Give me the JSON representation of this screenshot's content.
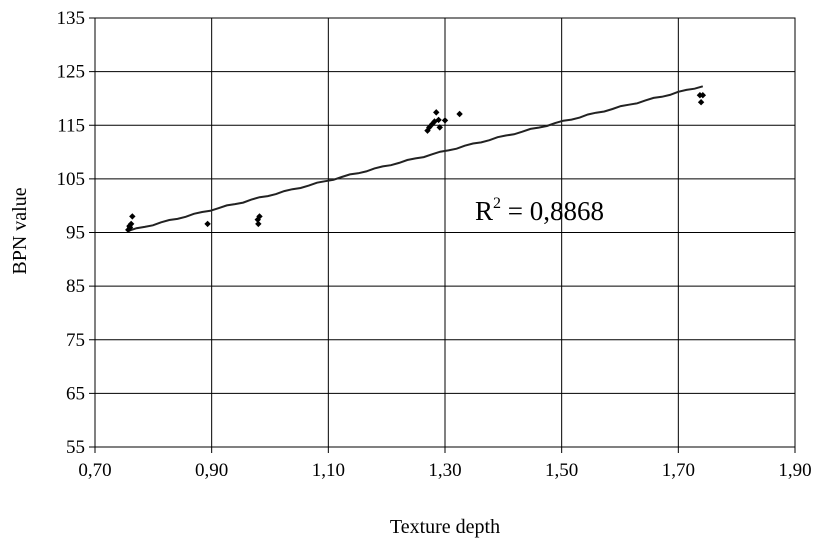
{
  "chart_data": {
    "type": "scatter",
    "title": "",
    "xlabel": "Texture depth",
    "ylabel": "BPN value",
    "xlim": [
      0.7,
      1.9
    ],
    "ylim": [
      55,
      135
    ],
    "x_ticks": [
      0.7,
      0.9,
      1.1,
      1.3,
      1.5,
      1.7,
      1.9
    ],
    "x_tick_labels": [
      "0,70",
      "0,90",
      "1,10",
      "1,30",
      "1,50",
      "1,70",
      "1,90"
    ],
    "y_ticks": [
      55,
      65,
      75,
      85,
      95,
      105,
      115,
      125,
      135
    ],
    "y_tick_labels": [
      "55",
      "65",
      "75",
      "85",
      "95",
      "105",
      "115",
      "125",
      "135"
    ],
    "grid": "horizontal and vertical",
    "series": [
      {
        "type": "scatter",
        "points": [
          [
            0.757,
            95.5
          ],
          [
            0.759,
            96.2
          ],
          [
            0.76,
            95.9
          ],
          [
            0.762,
            96.6
          ],
          [
            0.764,
            98.0
          ],
          [
            0.893,
            96.6
          ],
          [
            0.979,
            97.4
          ],
          [
            0.98,
            96.6
          ],
          [
            0.982,
            98.0
          ],
          [
            1.27,
            114.0
          ],
          [
            1.273,
            114.6
          ],
          [
            1.278,
            115.2
          ],
          [
            1.282,
            115.7
          ],
          [
            1.285,
            117.4
          ],
          [
            1.289,
            116.0
          ],
          [
            1.291,
            114.6
          ],
          [
            1.3,
            115.9
          ],
          [
            1.325,
            117.1
          ],
          [
            1.737,
            120.6
          ],
          [
            1.739,
            119.3
          ],
          [
            1.742,
            120.6
          ]
        ]
      },
      {
        "type": "trendline",
        "x_range": [
          0.757,
          1.742
        ],
        "y_range": [
          95.3,
          122.3
        ]
      }
    ],
    "annotations": [
      {
        "base": "R",
        "superscript": "2",
        "text": " = 0,8868"
      }
    ]
  }
}
